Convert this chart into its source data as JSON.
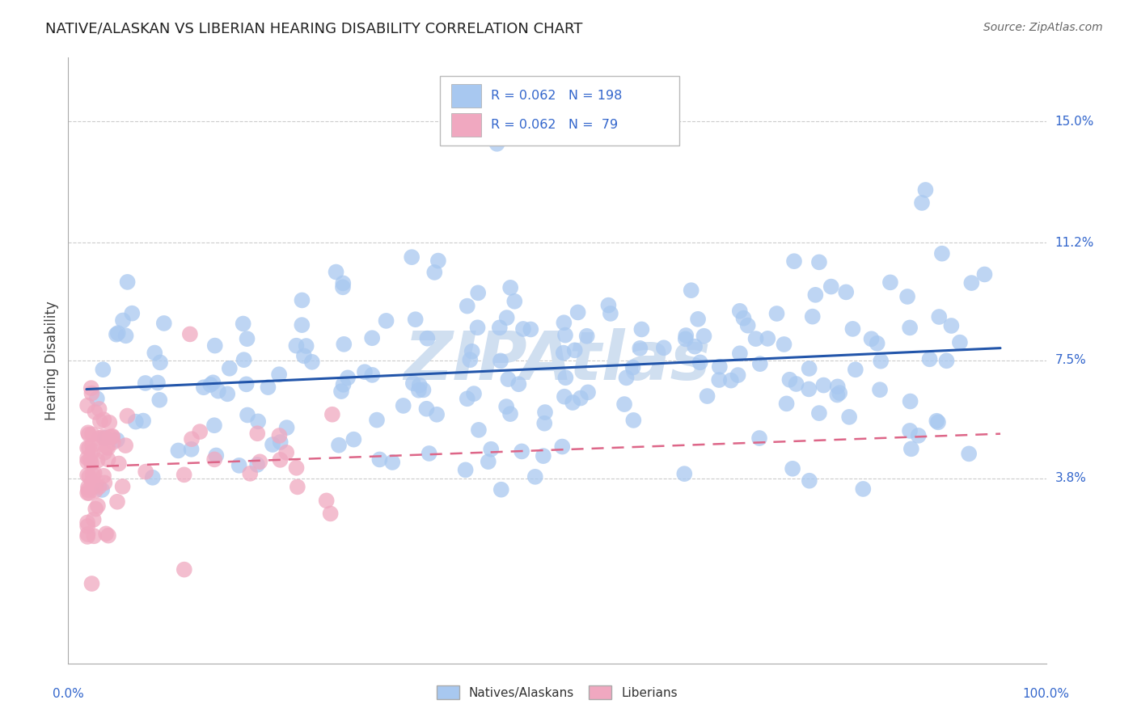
{
  "title": "NATIVE/ALASKAN VS LIBERIAN HEARING DISABILITY CORRELATION CHART",
  "source": "Source: ZipAtlas.com",
  "ylabel": "Hearing Disability",
  "blue_color": "#a8c8f0",
  "pink_color": "#f0a8c0",
  "blue_line_color": "#2255aa",
  "pink_line_color": "#dd6688",
  "background_color": "#ffffff",
  "grid_color": "#cccccc",
  "label_color": "#3366cc",
  "text_color": "#444444",
  "watermark_color": "#d0dff0",
  "ytick_vals": [
    0.038,
    0.075,
    0.112,
    0.15
  ],
  "ytick_labels": [
    "3.8%",
    "7.5%",
    "11.2%",
    "15.0%"
  ],
  "xlim": [
    -0.02,
    1.05
  ],
  "ylim": [
    -0.02,
    0.17
  ]
}
